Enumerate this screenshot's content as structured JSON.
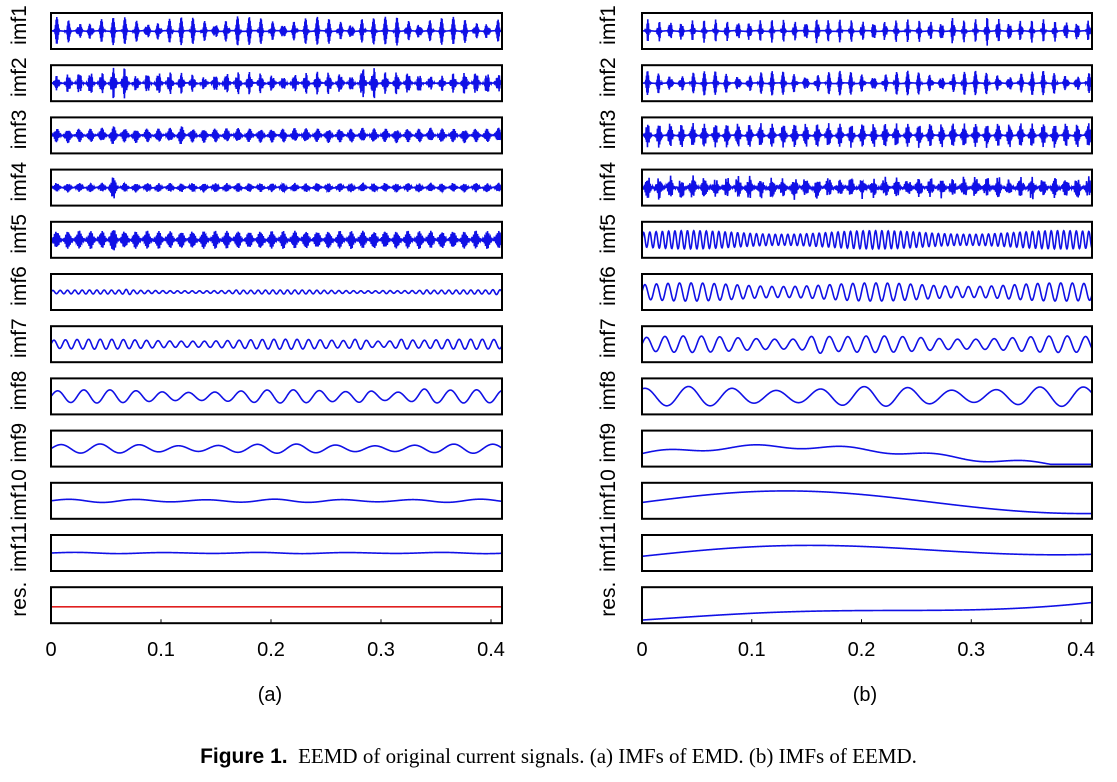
{
  "figure": {
    "caption_label": "Figure 1.",
    "caption_text": "EEMD of original current signals. (a) IMFs of EMD. (b) IMFs of EEMD."
  },
  "colors": {
    "signal": "#1010e6",
    "residual_a": "#e02020",
    "axes": "#000000"
  },
  "chart_data": [
    {
      "type": "line",
      "id": "a",
      "sublabel": "(a)",
      "x_ticks": [
        "0",
        "0.1",
        "0.2",
        "0.3",
        "0.4"
      ],
      "xlim": [
        0,
        0.41
      ],
      "grid": false,
      "panel_labels": [
        "imf1",
        "imf2",
        "imf3",
        "imf4",
        "imf5",
        "imf6",
        "imf7",
        "imf8",
        "imf9",
        "imf10",
        "imf11",
        "res."
      ],
      "series": [
        {
          "kind": "bursts",
          "amp": 0.85,
          "spacing": 0.0103,
          "width": 0.0016,
          "freq": 1800,
          "big": [
            0.164,
            0.287,
            0.32
          ],
          "bigAmp": 1.0
        },
        {
          "kind": "bursts",
          "amp": 0.7,
          "spacing": 0.0103,
          "width": 0.0022,
          "freq": 1500,
          "big": [
            0.055,
            0.068,
            0.288
          ],
          "bigAmp": 0.95,
          "env": "wave"
        },
        {
          "kind": "bursts",
          "amp": 0.45,
          "spacing": 0.0103,
          "width": 0.0025,
          "freq": 1200,
          "big": [
            0.055,
            0.115
          ],
          "bigAmp": 0.6
        },
        {
          "kind": "bursts",
          "amp": 0.28,
          "spacing": 0.0103,
          "width": 0.0025,
          "freq": 1000,
          "big": [
            0.055
          ],
          "bigAmp": 0.7
        },
        {
          "kind": "bursts",
          "amp": 0.55,
          "spacing": 0.0103,
          "width": 0.0028,
          "freq": 900,
          "big": [
            0.055
          ],
          "bigAmp": 0.75
        },
        {
          "kind": "sine",
          "amp": 0.12,
          "freq": 150,
          "mods": [
            [
              0.07,
              0.004,
              0.5
            ],
            [
              0.17,
              0.004,
              0.3
            ],
            [
              0.305,
              0.004,
              0.35
            ],
            [
              0.34,
              0.004,
              0.3
            ],
            [
              0.405,
              0.004,
              0.4
            ]
          ]
        },
        {
          "kind": "sine",
          "amp": 0.3,
          "freq": 95,
          "mods": [
            [
              0.28,
              0.008,
              0.6
            ],
            [
              0.32,
              0.008,
              0.5
            ]
          ]
        },
        {
          "kind": "sine",
          "amp": 0.4,
          "freq": 42,
          "mods": [
            [
              0.285,
              0.01,
              0.5
            ],
            [
              0.34,
              0.01,
              0.4
            ]
          ]
        },
        {
          "kind": "sine",
          "amp": 0.28,
          "freq": 28
        },
        {
          "kind": "sine",
          "amp": 0.1,
          "freq": 16
        },
        {
          "kind": "sine",
          "amp": 0.04,
          "freq": 12
        },
        {
          "kind": "flat",
          "value": -0.1
        }
      ]
    },
    {
      "type": "line",
      "id": "b",
      "sublabel": "(b)",
      "x_ticks": [
        "0",
        "0.1",
        "0.2",
        "0.3",
        "0.4"
      ],
      "xlim": [
        0,
        0.41
      ],
      "grid": false,
      "panel_labels": [
        "imf1",
        "imf2",
        "imf3",
        "imf4",
        "imf5",
        "imf6",
        "imf7",
        "imf8",
        "imf9",
        "imf10",
        "imf11",
        "res."
      ],
      "series": [
        {
          "kind": "bursts",
          "amp": 0.7,
          "spacing": 0.0103,
          "width": 0.0014,
          "freq": 1900,
          "big": [
            0.16,
            0.285,
            0.32
          ],
          "bigAmp": 0.95
        },
        {
          "kind": "bursts",
          "amp": 0.75,
          "spacing": 0.0103,
          "width": 0.0016,
          "freq": 1600
        },
        {
          "kind": "bursts",
          "amp": 0.75,
          "spacing": 0.0103,
          "width": 0.002,
          "freq": 1300
        },
        {
          "kind": "bursts",
          "amp": 0.55,
          "spacing": 0.0103,
          "width": 0.0025,
          "freq": 1000,
          "noise": 0.18
        },
        {
          "kind": "sine",
          "amp": 0.55,
          "freq": 175
        },
        {
          "kind": "sine",
          "amp": 0.55,
          "freq": 95
        },
        {
          "kind": "sine",
          "amp": 0.5,
          "freq": 60,
          "mods": [
            [
              0.16,
              0.01,
              0.5
            ]
          ]
        },
        {
          "kind": "sine",
          "amp": 0.6,
          "freq": 25,
          "phase": 1.2
        },
        {
          "kind": "trend",
          "coeffs": [
            -0.3,
            0.25,
            0.8,
            -0.55
          ],
          "ripple": [
            0.12,
            5
          ]
        },
        {
          "kind": "trend",
          "coeffs": [
            -0.1,
            0.5,
            1.2,
            -0.6
          ],
          "ripple": [
            0.0,
            3
          ]
        },
        {
          "kind": "trend",
          "coeffs": [
            -0.2,
            0.9,
            0.8,
            -0.4
          ],
          "ripple": [
            0.0,
            2
          ]
        },
        {
          "kind": "trend",
          "coeffs": [
            -0.9,
            0.25,
            0.6,
            1.1
          ],
          "ripple": [
            0.0,
            1
          ]
        }
      ]
    }
  ]
}
